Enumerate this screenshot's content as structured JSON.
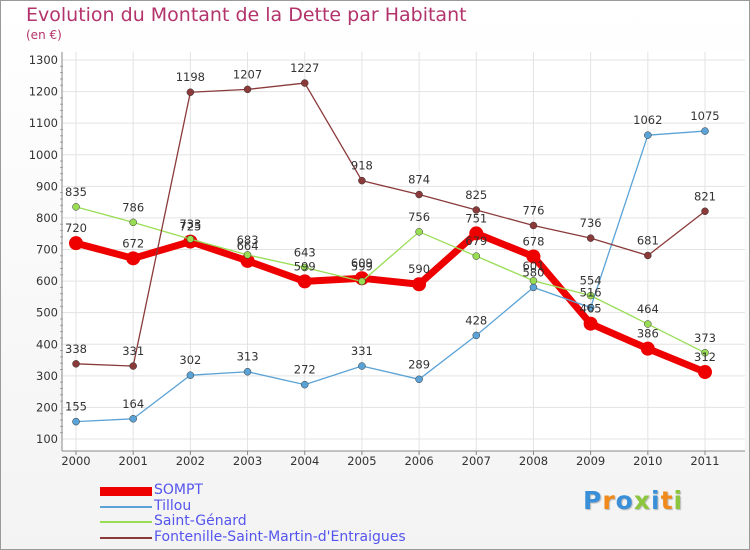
{
  "title": "Evolution du Montant de la Dette par Habitant",
  "subtitle": "(en €)",
  "logo": {
    "text": "Proxiti",
    "colors": [
      "#3a8fd9",
      "#f08a1c",
      "#3a8fd9",
      "#8cc63f",
      "#3a8fd9",
      "#f08a1c",
      "#8cc63f"
    ]
  },
  "chart_data": {
    "type": "line",
    "x": [
      2000,
      2001,
      2002,
      2003,
      2004,
      2005,
      2006,
      2007,
      2008,
      2009,
      2010,
      2011
    ],
    "ylim": [
      100,
      1300
    ],
    "yticks": [
      100,
      200,
      300,
      400,
      500,
      600,
      700,
      800,
      900,
      1000,
      1100,
      1200,
      1300
    ],
    "grid": true,
    "legend_position": "bottom-left",
    "series": [
      {
        "name": "SOMPT",
        "color": "#ee0000",
        "line_width": 7,
        "marker": 7,
        "values": [
          720,
          672,
          725,
          664,
          599,
          609,
          590,
          751,
          678,
          465,
          386,
          312
        ]
      },
      {
        "name": "Tillou",
        "color": "#5ba3d6",
        "line_width": 1.3,
        "marker": 3.5,
        "values": [
          155,
          164,
          302,
          313,
          272,
          331,
          289,
          428,
          580,
          516,
          1062,
          1075
        ]
      },
      {
        "name": "Saint-Génard",
        "color": "#99dd55",
        "line_width": 1.3,
        "marker": 3.5,
        "values": [
          835,
          786,
          733,
          683,
          643,
          599,
          756,
          679,
          601,
          554,
          464,
          373
        ]
      },
      {
        "name": "Fontenille-Saint-Martin-d'Entraigues",
        "color": "#8b3a3a",
        "line_width": 1.3,
        "marker": 3.5,
        "values": [
          338,
          331,
          1198,
          1207,
          1227,
          918,
          874,
          825,
          776,
          736,
          681,
          821
        ]
      }
    ]
  }
}
